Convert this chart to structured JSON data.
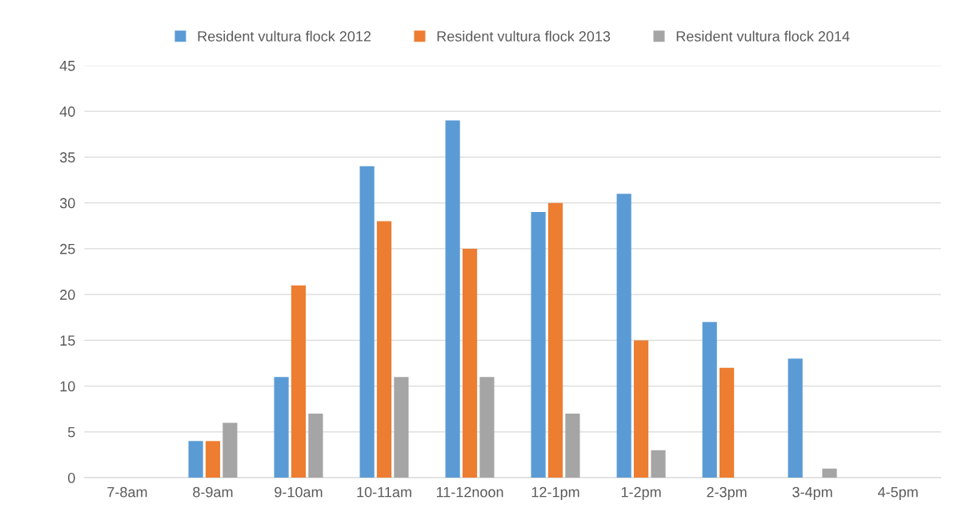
{
  "chart_data": {
    "type": "bar",
    "categories": [
      "7-8am",
      "8-9am",
      "9-10am",
      "10-11am",
      "11-12noon",
      "12-1pm",
      "1-2pm",
      "2-3pm",
      "3-4pm",
      "4-5pm"
    ],
    "series": [
      {
        "name": "Resident vultura flock 2012",
        "color": "#5b9bd5",
        "values": [
          0,
          4,
          11,
          34,
          39,
          29,
          31,
          17,
          13,
          0
        ]
      },
      {
        "name": "Resident vultura flock 2013",
        "color": "#ed7d31",
        "values": [
          0,
          4,
          21,
          28,
          25,
          30,
          15,
          12,
          0,
          0
        ]
      },
      {
        "name": "Resident vultura flock 2014",
        "color": "#a5a5a5",
        "values": [
          0,
          6,
          7,
          11,
          11,
          7,
          3,
          0,
          1,
          0
        ]
      }
    ],
    "ylim": [
      0,
      45
    ],
    "yticks": [
      0,
      5,
      10,
      15,
      20,
      25,
      30,
      35,
      40,
      45
    ],
    "grid": "y",
    "legend": "top"
  }
}
